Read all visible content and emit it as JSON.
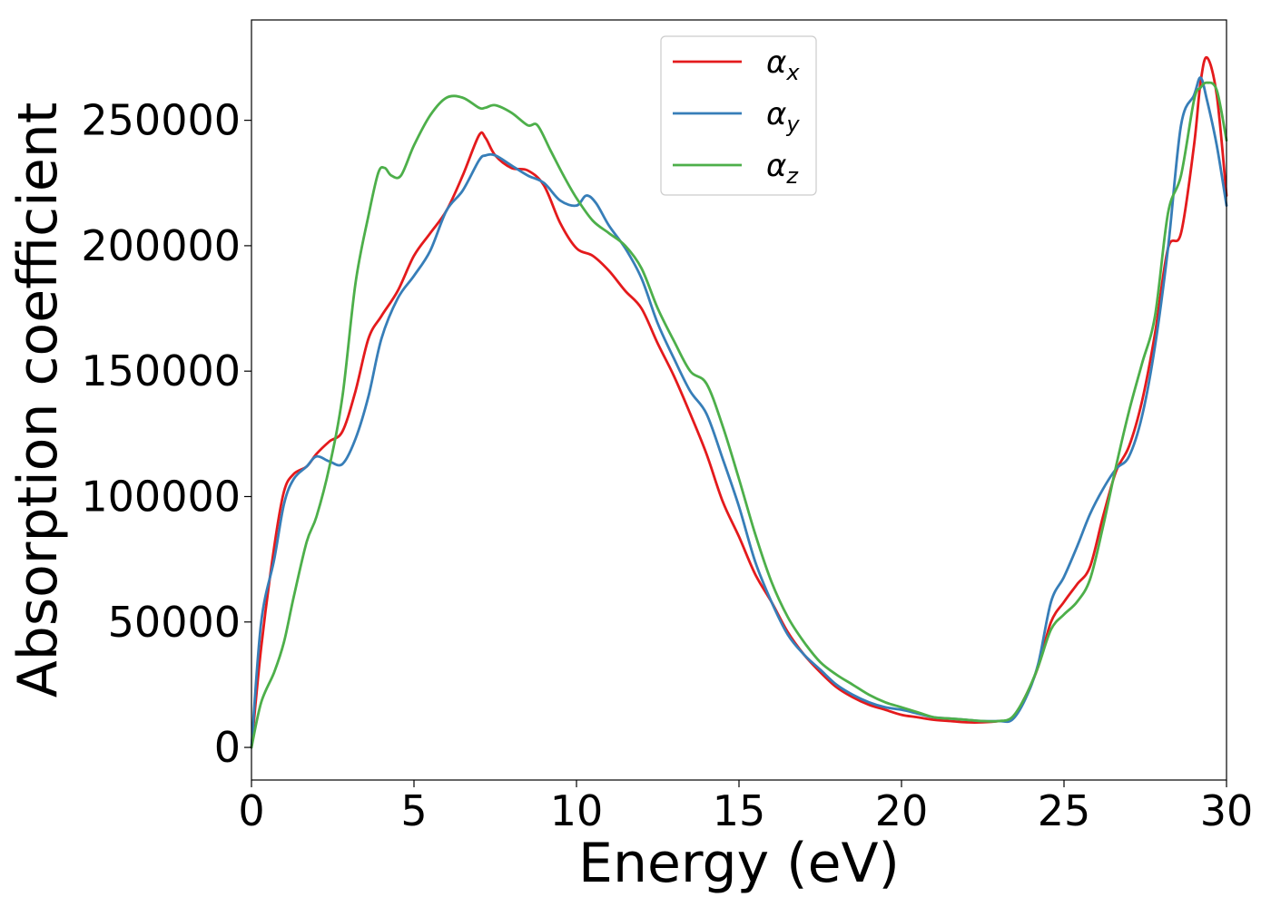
{
  "chart_data": {
    "type": "line",
    "xlabel": "Energy (eV)",
    "ylabel": "Absorption coefficient",
    "xlim": [
      0,
      30
    ],
    "ylim": [
      -13000,
      290000
    ],
    "xticks": [
      0,
      5,
      10,
      15,
      20,
      25,
      30
    ],
    "yticks": [
      0,
      50000,
      100000,
      150000,
      200000,
      250000
    ],
    "grid": false,
    "legend_position": "top-center",
    "series": [
      {
        "name": "α",
        "subscript": "x",
        "color": "#e41a1c",
        "x": [
          0,
          0.3,
          0.7,
          1.0,
          1.3,
          1.7,
          2.0,
          2.4,
          2.8,
          3.2,
          3.6,
          4.0,
          4.5,
          5.0,
          5.5,
          6.0,
          6.5,
          7.0,
          7.2,
          7.5,
          8.0,
          8.5,
          9.0,
          9.5,
          10.0,
          10.5,
          11.0,
          11.5,
          12.0,
          12.5,
          13.0,
          13.5,
          14.0,
          14.5,
          15.0,
          15.5,
          16.0,
          16.5,
          17.0,
          17.5,
          18.0,
          18.5,
          19.0,
          19.5,
          20.0,
          20.5,
          21.0,
          21.5,
          22.0,
          22.5,
          23.0,
          23.4,
          23.8,
          24.2,
          24.6,
          25.0,
          25.4,
          25.8,
          26.2,
          26.6,
          27.0,
          27.4,
          27.8,
          28.2,
          28.6,
          29.0,
          29.2,
          29.4,
          29.7,
          30.0
        ],
        "y": [
          0,
          40000,
          80000,
          102000,
          109000,
          112000,
          117000,
          122000,
          126000,
          142000,
          163000,
          172000,
          182000,
          196000,
          205000,
          214000,
          228000,
          244000,
          243000,
          236000,
          231000,
          230000,
          224000,
          209000,
          199000,
          196000,
          190000,
          182000,
          175000,
          161000,
          148000,
          133000,
          117000,
          98000,
          84000,
          69000,
          58000,
          46000,
          37000,
          30000,
          24000,
          20000,
          17000,
          15000,
          13000,
          12000,
          11000,
          10500,
          10000,
          10000,
          10500,
          11500,
          20000,
          32000,
          50000,
          58000,
          65000,
          72000,
          92000,
          110000,
          120000,
          138000,
          165000,
          199000,
          205000,
          240000,
          265000,
          275000,
          260000,
          220000
        ]
      },
      {
        "name": "α",
        "subscript": "y",
        "color": "#377eb8",
        "x": [
          0,
          0.3,
          0.7,
          1.0,
          1.3,
          1.7,
          2.0,
          2.4,
          2.8,
          3.2,
          3.6,
          4.0,
          4.5,
          5.0,
          5.5,
          6.0,
          6.5,
          7.0,
          7.2,
          7.5,
          8.0,
          8.5,
          9.0,
          9.5,
          10.0,
          10.3,
          10.6,
          11.0,
          11.5,
          12.0,
          12.5,
          13.0,
          13.5,
          14.0,
          14.5,
          15.0,
          15.5,
          16.0,
          16.5,
          17.0,
          17.5,
          18.0,
          18.5,
          19.0,
          19.5,
          20.0,
          20.5,
          21.0,
          21.5,
          22.0,
          22.5,
          23.0,
          23.4,
          23.8,
          24.2,
          24.6,
          25.0,
          25.4,
          25.8,
          26.2,
          26.6,
          27.0,
          27.4,
          27.8,
          28.2,
          28.6,
          29.0,
          29.2,
          29.4,
          29.7,
          30.0
        ],
        "y": [
          0,
          50000,
          75000,
          97000,
          107000,
          112000,
          116000,
          114000,
          113000,
          123000,
          140000,
          163000,
          179000,
          188000,
          198000,
          214000,
          222000,
          234000,
          236000,
          236000,
          232000,
          228000,
          225000,
          218000,
          216000,
          220000,
          217000,
          208000,
          199000,
          187000,
          169000,
          155000,
          142000,
          133000,
          115000,
          96000,
          74000,
          58000,
          45000,
          37000,
          31000,
          25000,
          21000,
          18000,
          16000,
          15000,
          13500,
          12000,
          11500,
          11000,
          10500,
          10500,
          11000,
          19000,
          33000,
          58000,
          68000,
          80000,
          93000,
          103000,
          111000,
          116000,
          132000,
          160000,
          199000,
          248000,
          260000,
          267000,
          258000,
          240000,
          216000
        ]
      },
      {
        "name": "α",
        "subscript": "z",
        "color": "#4daf4a",
        "x": [
          0,
          0.3,
          0.7,
          1.0,
          1.3,
          1.7,
          2.0,
          2.4,
          2.8,
          3.2,
          3.6,
          3.9,
          4.1,
          4.3,
          4.6,
          5.0,
          5.5,
          6.0,
          6.5,
          7.0,
          7.2,
          7.5,
          8.0,
          8.5,
          8.8,
          9.2,
          9.6,
          10.0,
          10.5,
          11.0,
          11.5,
          12.0,
          12.5,
          13.0,
          13.5,
          14.0,
          14.5,
          15.0,
          15.5,
          16.0,
          16.5,
          17.0,
          17.5,
          18.0,
          18.5,
          19.0,
          19.5,
          20.0,
          20.5,
          21.0,
          21.5,
          22.0,
          22.5,
          23.0,
          23.4,
          23.8,
          24.2,
          24.6,
          25.0,
          25.4,
          25.8,
          26.2,
          26.6,
          27.0,
          27.4,
          27.8,
          28.2,
          28.6,
          29.0,
          29.2,
          29.4,
          29.7,
          30.0
        ],
        "y": [
          0,
          18000,
          30000,
          42000,
          60000,
          82000,
          92000,
          112000,
          140000,
          185000,
          212000,
          229000,
          231000,
          228000,
          228000,
          240000,
          252000,
          259000,
          259000,
          255000,
          255000,
          256000,
          253000,
          248000,
          248000,
          238000,
          228000,
          219000,
          210000,
          205000,
          200000,
          191000,
          175000,
          162000,
          150000,
          145000,
          128000,
          107000,
          85000,
          66000,
          52000,
          42000,
          34000,
          29000,
          25000,
          21000,
          18000,
          16000,
          14000,
          12000,
          11500,
          11000,
          10500,
          10500,
          12000,
          20000,
          32000,
          47000,
          53000,
          58000,
          67000,
          88000,
          112000,
          134000,
          153000,
          172000,
          213000,
          228000,
          258000,
          263000,
          265000,
          262000,
          242000
        ]
      }
    ]
  }
}
